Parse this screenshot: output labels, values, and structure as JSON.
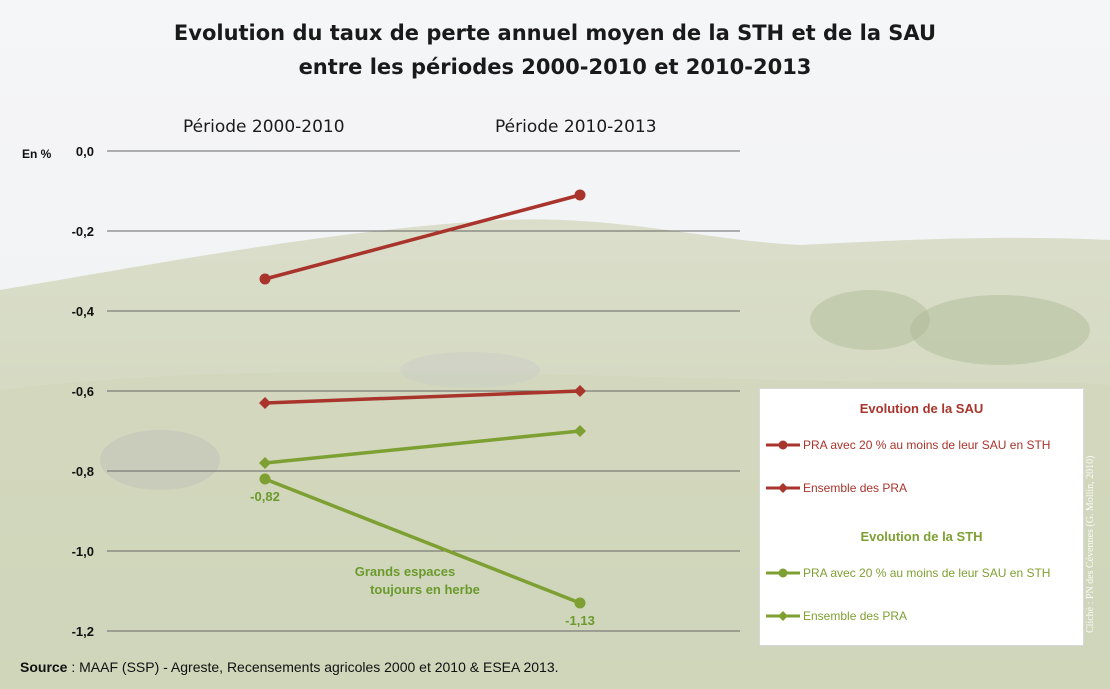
{
  "title_line1": "Evolution du taux de perte annuel moyen de la STH et de la SAU",
  "title_line2": "entre les périodes 2000-2010 et 2010-2013",
  "period_labels": [
    "Période 2000-2010",
    "Période 2010-2013"
  ],
  "unit_label": "En %",
  "source_label": "Source",
  "source_text": " : MAAF (SSP) - Agreste, Recensements agricoles 2000 et 2010 & ESEA 2013.",
  "photo_credit": "Cliché : PN des Cévennes (G. Mollin, 2010)",
  "annotation": {
    "line1": "Grands espaces",
    "line2": "toujours en herbe"
  },
  "legend": {
    "sau_heading": "Evolution de la SAU",
    "sth_heading": "Evolution de la STH",
    "sau_items": [
      "PRA avec 20 % au moins de leur SAU en STH",
      "Ensemble des PRA"
    ],
    "sth_items": [
      "PRA avec 20 % au moins de leur SAU en STH",
      "Ensemble des PRA"
    ]
  },
  "colors": {
    "sau": "#a8342c",
    "sth": "#7ea032",
    "sth_annotation": "#6a9a2c",
    "grid": "#666666"
  },
  "chart_data": {
    "type": "line",
    "title": "Evolution du taux de perte annuel moyen de la STH et de la SAU entre les périodes 2000-2010 et 2010-2013",
    "ylabel": "En %",
    "ylim": [
      -1.2,
      0.0
    ],
    "yticks": [
      "0,0",
      "-0,2",
      "-0,4",
      "-0,6",
      "-0,8",
      "-1,0",
      "-1,2"
    ],
    "ytick_values": [
      0.0,
      -0.2,
      -0.4,
      -0.6,
      -0.8,
      -1.0,
      -1.2
    ],
    "categories": [
      "Période 2000-2010",
      "Période 2010-2013"
    ],
    "grid": true,
    "legend_position": "right",
    "series": [
      {
        "name": "PRA avec 20 % au moins de leur SAU en STH",
        "group": "SAU",
        "marker": "circle",
        "color": "#a8342c",
        "values": [
          -0.32,
          -0.11
        ]
      },
      {
        "name": "Ensemble des PRA",
        "group": "SAU",
        "marker": "diamond",
        "color": "#a8342c",
        "values": [
          -0.63,
          -0.6
        ]
      },
      {
        "name": "PRA avec 20 % au moins de leur SAU en STH",
        "group": "STH",
        "marker": "circle",
        "color": "#7ea032",
        "values": [
          -0.82,
          -1.13
        ],
        "labels": [
          "-0,82",
          "-1,13"
        ]
      },
      {
        "name": "Ensemble des PRA",
        "group": "STH",
        "marker": "diamond",
        "color": "#7ea032",
        "values": [
          -0.78,
          -0.7
        ]
      }
    ]
  }
}
